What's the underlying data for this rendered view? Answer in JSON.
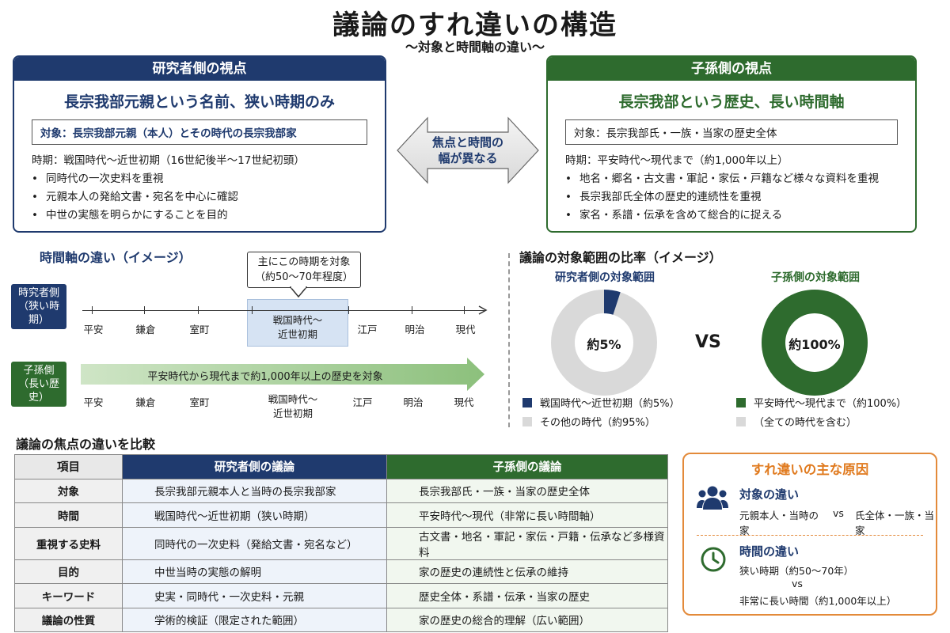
{
  "header": {
    "title": "議論のすれ違いの構造",
    "subtitle": "〜対象と時間軸の違い〜"
  },
  "colors": {
    "researcher": "#1f3a6e",
    "descendant": "#2e6b2e",
    "accent": "#e07a1e",
    "other": "#d9d9d9"
  },
  "researcher_panel": {
    "header": "研究者側の視点",
    "main": "長宗我部元親という名前、狭い時期のみ",
    "target": "対象：長宗我部元親（本人）とその時代の長宗我部家",
    "period": "時期：戦国時代〜近世初期（16世紀後半〜17世紀初頭）",
    "bullets": [
      "同時代の一次史料を重視",
      "元親本人の発給文書・宛名を中心に確認",
      "中世の実態を明らかにすることを目的"
    ]
  },
  "descendant_panel": {
    "header": "子孫側の視点",
    "main": "長宗我部という歴史、長い時間軸",
    "target": "対象：長宗我部氏・一族・当家の歴史全体",
    "period": "時期：平安時代〜現代まで（約1,000年以上）",
    "bullets": [
      "地名・郷名・古文書・軍記・家伝・戸籍など様々な資料を重視",
      "長宗我部氏全体の歴史的連続性を重視",
      "家名・系譜・伝承を含めて総合的に捉える"
    ]
  },
  "middle_arrow": {
    "line1": "焦点と時間の",
    "line2": "幅が異なる"
  },
  "timeline": {
    "heading": "時間軸の違い（イメージ）",
    "researcher_tag": [
      "時究者側",
      "（狭い時期）"
    ],
    "descendant_tag": [
      "子孫側",
      "（長い歴史）"
    ],
    "callout": [
      "主にこの時期を対象",
      "（約50〜70年程度）"
    ],
    "focus": [
      "戦国時代〜",
      "近世初期"
    ],
    "eras_top": [
      "平安",
      "鎌倉",
      "室町",
      "江戸",
      "明治",
      "現代"
    ],
    "eras_bottom": [
      "平安",
      "鎌倉",
      "室町",
      "江戸",
      "明治",
      "現代"
    ],
    "bottom_mid": [
      "戦国時代〜",
      "近世初期"
    ],
    "long_arrow_text": "平安時代から現代まで約1,000年以上の歴史を対象"
  },
  "ratio": {
    "heading": "議論の対象範囲の比率（イメージ）",
    "vs": "VS",
    "researcher": {
      "title": "研究者側の対象範囲",
      "center": "約5%",
      "share": 0.05,
      "legend": [
        "戦国時代〜近世初期（約5%）",
        "その他の時代（約95%）"
      ]
    },
    "descendant": {
      "title": "子孫側の対象範囲",
      "center": "約100%",
      "share": 1.0,
      "legend": [
        "平安時代〜現代まで（約100%）",
        "（全ての時代を含む）"
      ]
    }
  },
  "comparison": {
    "heading": "議論の焦点の違いを比較",
    "headers": [
      "項目",
      "研究者側の議論",
      "子孫側の議論"
    ],
    "rows": [
      [
        "対象",
        "長宗我部元親本人と当時の長宗我部家",
        "長宗我部氏・一族・当家の歴史全体"
      ],
      [
        "時間",
        "戦国時代〜近世初期（狭い時期）",
        "平安時代〜現代（非常に長い時間軸）"
      ],
      [
        "重視する史料",
        "同時代の一次史料（発給文書・宛名など）",
        "古文書・地名・軍記・家伝・戸籍・伝承など多様資料"
      ],
      [
        "目的",
        "中世当時の実態の解明",
        "家の歴史の連続性と伝承の維持"
      ],
      [
        "キーワード",
        "史実・同時代・一次史料・元親",
        "歴史全体・系譜・伝承・当家の歴史"
      ],
      [
        "議論の性質",
        "学術的検証（限定された範囲）",
        "家の歴史の総合的理解（広い範囲）"
      ]
    ]
  },
  "causes": {
    "title": "すれ違いの主な原因",
    "target_head": "対象の違い",
    "target_left": "元親本人・当時の家",
    "target_vs": "vs",
    "target_right": "氏全体・一族・当家",
    "time_head": "時間の違い",
    "time_line1": "狭い時期（約50〜70年）",
    "time_vs": "vs",
    "time_line2": "非常に長い時間（約1,000年以上）"
  }
}
